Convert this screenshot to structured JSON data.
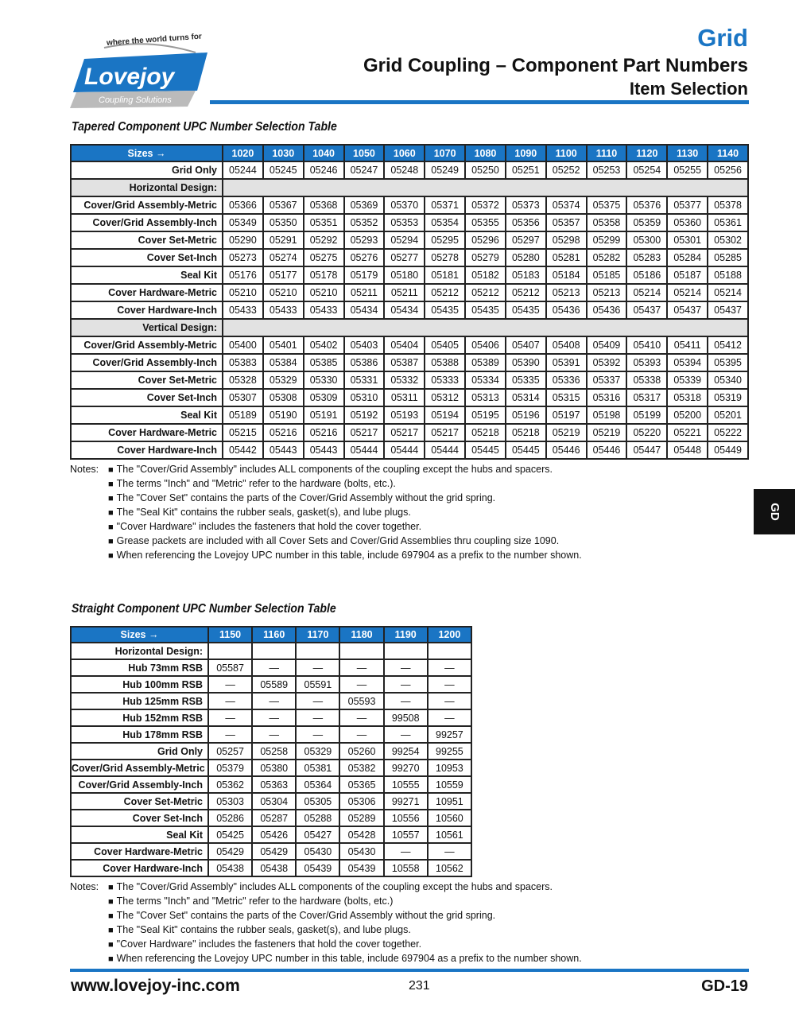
{
  "logo": {
    "tagline": "where the world turns for",
    "name": "Lovejoy",
    "sub": "Coupling Solutions"
  },
  "header": {
    "brand": "Grid",
    "title": "Grid Coupling – Component Part Numbers",
    "subtitle": "Item Selection"
  },
  "colors": {
    "accent": "#1a75c4",
    "section_bg": "#e2e2e2"
  },
  "side_tab": "GD",
  "tapered": {
    "caption": "Tapered Component UPC Number Selection Table",
    "sizes_label": "Sizes →",
    "columns": [
      "1020",
      "1030",
      "1040",
      "1050",
      "1060",
      "1070",
      "1080",
      "1090",
      "1100",
      "1110",
      "1120",
      "1130",
      "1140"
    ],
    "rows": [
      {
        "label": "Grid Only",
        "values": [
          "05244",
          "05245",
          "05246",
          "05247",
          "05248",
          "05249",
          "05250",
          "05251",
          "05252",
          "05253",
          "05254",
          "05255",
          "05256"
        ]
      },
      {
        "label": "Horizontal Design:",
        "section": true
      },
      {
        "label": "Cover/Grid Assembly-Metric",
        "values": [
          "05366",
          "05367",
          "05368",
          "05369",
          "05370",
          "05371",
          "05372",
          "05373",
          "05374",
          "05375",
          "05376",
          "05377",
          "05378"
        ]
      },
      {
        "label": "Cover/Grid Assembly-Inch",
        "values": [
          "05349",
          "05350",
          "05351",
          "05352",
          "05353",
          "05354",
          "05355",
          "05356",
          "05357",
          "05358",
          "05359",
          "05360",
          "05361"
        ]
      },
      {
        "label": "Cover Set-Metric",
        "values": [
          "05290",
          "05291",
          "05292",
          "05293",
          "05294",
          "05295",
          "05296",
          "05297",
          "05298",
          "05299",
          "05300",
          "05301",
          "05302"
        ]
      },
      {
        "label": "Cover Set-Inch",
        "values": [
          "05273",
          "05274",
          "05275",
          "05276",
          "05277",
          "05278",
          "05279",
          "05280",
          "05281",
          "05282",
          "05283",
          "05284",
          "05285"
        ]
      },
      {
        "label": "Seal Kit",
        "values": [
          "05176",
          "05177",
          "05178",
          "05179",
          "05180",
          "05181",
          "05182",
          "05183",
          "05184",
          "05185",
          "05186",
          "05187",
          "05188"
        ]
      },
      {
        "label": "Cover Hardware-Metric",
        "values": [
          "05210",
          "05210",
          "05210",
          "05211",
          "05211",
          "05212",
          "05212",
          "05212",
          "05213",
          "05213",
          "05214",
          "05214",
          "05214"
        ]
      },
      {
        "label": "Cover Hardware-Inch",
        "values": [
          "05433",
          "05433",
          "05433",
          "05434",
          "05434",
          "05435",
          "05435",
          "05435",
          "05436",
          "05436",
          "05437",
          "05437",
          "05437"
        ]
      },
      {
        "label": "Vertical Design:",
        "section": true
      },
      {
        "label": "Cover/Grid Assembly-Metric",
        "values": [
          "05400",
          "05401",
          "05402",
          "05403",
          "05404",
          "05405",
          "05406",
          "05407",
          "05408",
          "05409",
          "05410",
          "05411",
          "05412"
        ]
      },
      {
        "label": "Cover/Grid Assembly-Inch",
        "values": [
          "05383",
          "05384",
          "05385",
          "05386",
          "05387",
          "05388",
          "05389",
          "05390",
          "05391",
          "05392",
          "05393",
          "05394",
          "05395"
        ]
      },
      {
        "label": "Cover Set-Metric",
        "values": [
          "05328",
          "05329",
          "05330",
          "05331",
          "05332",
          "05333",
          "05334",
          "05335",
          "05336",
          "05337",
          "05338",
          "05339",
          "05340"
        ]
      },
      {
        "label": "Cover Set-Inch",
        "values": [
          "05307",
          "05308",
          "05309",
          "05310",
          "05311",
          "05312",
          "05313",
          "05314",
          "05315",
          "05316",
          "05317",
          "05318",
          "05319"
        ]
      },
      {
        "label": "Seal Kit",
        "values": [
          "05189",
          "05190",
          "05191",
          "05192",
          "05193",
          "05194",
          "05195",
          "05196",
          "05197",
          "05198",
          "05199",
          "05200",
          "05201"
        ]
      },
      {
        "label": "Cover Hardware-Metric",
        "values": [
          "05215",
          "05216",
          "05216",
          "05217",
          "05217",
          "05217",
          "05218",
          "05218",
          "05219",
          "05219",
          "05220",
          "05221",
          "05222"
        ]
      },
      {
        "label": "Cover Hardware-Inch",
        "values": [
          "05442",
          "05443",
          "05443",
          "05444",
          "05444",
          "05444",
          "05445",
          "05445",
          "05446",
          "05446",
          "05447",
          "05448",
          "05449"
        ]
      }
    ],
    "notes_label": "Notes:",
    "notes": [
      "The \"Cover/Grid Assembly\" includes ALL components of the coupling except the hubs and spacers.",
      "The terms \"Inch\" and \"Metric\" refer to the hardware (bolts, etc.).",
      "The \"Cover Set\" contains the parts of the Cover/Grid Assembly without the grid spring.",
      "The \"Seal Kit\" contains the rubber seals, gasket(s), and lube plugs.",
      "\"Cover Hardware\" includes the fasteners that hold the cover together.",
      "Grease packets are included with all Cover Sets and Cover/Grid Assemblies thru coupling size 1090.",
      "When referencing the Lovejoy UPC number in this table, include 697904 as a prefix to the number shown."
    ]
  },
  "straight": {
    "caption": "Straight Component UPC Number Selection Table",
    "sizes_label": "Sizes →",
    "columns": [
      "1150",
      "1160",
      "1170",
      "1180",
      "1190",
      "1200"
    ],
    "rows": [
      {
        "label": "Horizontal Design:",
        "values": [
          "",
          "",
          "",
          "",
          "",
          ""
        ]
      },
      {
        "label": "Hub 73mm RSB",
        "values": [
          "05587",
          "—",
          "—",
          "—",
          "—",
          "—"
        ]
      },
      {
        "label": "Hub 100mm RSB",
        "values": [
          "—",
          "05589",
          "05591",
          "—",
          "—",
          "—"
        ]
      },
      {
        "label": "Hub 125mm RSB",
        "values": [
          "—",
          "—",
          "—",
          "05593",
          "—",
          "—"
        ]
      },
      {
        "label": "Hub 152mm RSB",
        "values": [
          "—",
          "—",
          "—",
          "—",
          "99508",
          "—"
        ]
      },
      {
        "label": "Hub 178mm RSB",
        "values": [
          "—",
          "—",
          "—",
          "—",
          "—",
          "99257"
        ]
      },
      {
        "label": "Grid Only",
        "values": [
          "05257",
          "05258",
          "05329",
          "05260",
          "99254",
          "99255"
        ]
      },
      {
        "label": "Cover/Grid Assembly-Metric",
        "values": [
          "05379",
          "05380",
          "05381",
          "05382",
          "99270",
          "10953"
        ]
      },
      {
        "label": "Cover/Grid Assembly-Inch",
        "values": [
          "05362",
          "05363",
          "05364",
          "05365",
          "10555",
          "10559"
        ]
      },
      {
        "label": "Cover Set-Metric",
        "values": [
          "05303",
          "05304",
          "05305",
          "05306",
          "99271",
          "10951"
        ]
      },
      {
        "label": "Cover Set-Inch",
        "values": [
          "05286",
          "05287",
          "05288",
          "05289",
          "10556",
          "10560"
        ]
      },
      {
        "label": "Seal Kit",
        "values": [
          "05425",
          "05426",
          "05427",
          "05428",
          "10557",
          "10561"
        ]
      },
      {
        "label": "Cover Hardware-Metric",
        "values": [
          "05429",
          "05429",
          "05430",
          "05430",
          "—",
          "—"
        ]
      },
      {
        "label": "Cover Hardware-Inch",
        "values": [
          "05438",
          "05438",
          "05439",
          "05439",
          "10558",
          "10562"
        ]
      }
    ],
    "notes_label": "Notes:",
    "notes": [
      "The \"Cover/Grid Assembly\" includes ALL components of the coupling except the hubs and spacers.",
      "The terms \"Inch\" and \"Metric\" refer to the hardware (bolts, etc.)",
      "The \"Cover Set\" contains the parts of the Cover/Grid Assembly without the grid spring.",
      "The \"Seal Kit\" contains the rubber seals, gasket(s), and lube plugs.",
      "\"Cover Hardware\" includes the fasteners that hold the cover together.",
      "When referencing the Lovejoy UPC number in this table, include 697904 as a prefix to the number shown."
    ]
  },
  "footer": {
    "url": "www.lovejoy-inc.com",
    "page": "231",
    "code": "GD-19"
  }
}
